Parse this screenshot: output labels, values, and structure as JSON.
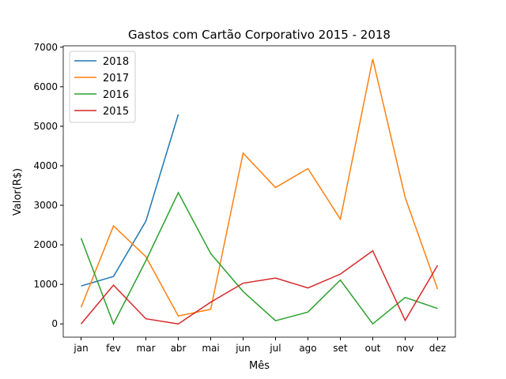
{
  "chart_data": {
    "type": "line",
    "title": "Gastos com Cartão Corporativo 2015 - 2018",
    "xlabel": "Mês",
    "ylabel": "Valor(R$)",
    "categories": [
      "jan",
      "fev",
      "mar",
      "abr",
      "mai",
      "jun",
      "jul",
      "ago",
      "set",
      "out",
      "nov",
      "dez"
    ],
    "series": [
      {
        "name": "2018",
        "color": "#1f77b4",
        "values": [
          960,
          1200,
          2600,
          5300,
          null,
          null,
          null,
          null,
          null,
          null,
          null,
          null
        ]
      },
      {
        "name": "2017",
        "color": "#ff7f0e",
        "values": [
          420,
          2480,
          1700,
          200,
          370,
          4320,
          3450,
          3930,
          2650,
          6700,
          3200,
          880
        ]
      },
      {
        "name": "2016",
        "color": "#2ca02c",
        "values": [
          2170,
          0,
          1600,
          3320,
          1780,
          820,
          80,
          300,
          1110,
          0,
          670,
          390
        ]
      },
      {
        "name": "2015",
        "color": "#d62728",
        "values": [
          0,
          980,
          130,
          0,
          550,
          1030,
          1160,
          910,
          1260,
          1850,
          90,
          1480
        ]
      }
    ],
    "ylim": [
      -335,
      7035
    ],
    "yticks": [
      0,
      1000,
      2000,
      3000,
      4000,
      5000,
      6000,
      7000
    ],
    "legend": "upper left",
    "grid": false
  }
}
